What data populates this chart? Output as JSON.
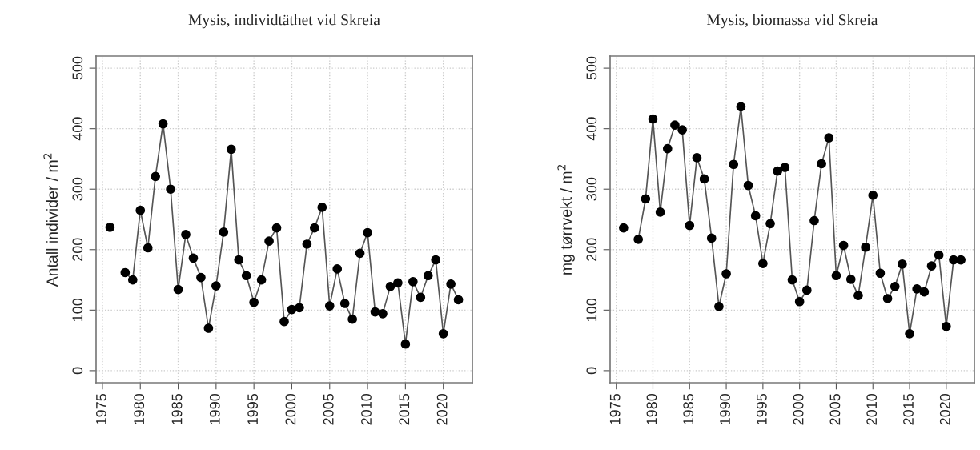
{
  "chart_data": [
    {
      "type": "line",
      "title": "Mysis, individtäthet vid Skreia",
      "ylabel": "Antall individer / m$^{2}$",
      "x": [
        1976,
        1977,
        1978,
        1979,
        1980,
        1981,
        1982,
        1983,
        1984,
        1985,
        1986,
        1987,
        1988,
        1989,
        1990,
        1991,
        1992,
        1993,
        1994,
        1995,
        1996,
        1997,
        1998,
        1999,
        2000,
        2001,
        2002,
        2003,
        2004,
        2005,
        2006,
        2007,
        2008,
        2009,
        2010,
        2011,
        2012,
        2013,
        2014,
        2015,
        2016,
        2017,
        2018,
        2019,
        2020,
        2021,
        2022
      ],
      "series": [
        {
          "color": "#000000",
          "values": [
            237,
            null,
            162,
            150,
            265,
            203,
            321,
            408,
            300,
            134,
            225,
            186,
            154,
            70,
            140,
            229,
            366,
            183,
            157,
            113,
            150,
            214,
            236,
            81,
            101,
            104,
            209,
            236,
            270,
            107,
            168,
            111,
            85,
            194,
            228,
            97,
            94,
            139,
            145,
            44,
            147,
            121,
            157,
            183,
            61,
            143,
            117
          ]
        }
      ],
      "xlim": [
        1974.16,
        2023.84
      ],
      "xticks": [
        1975,
        1980,
        1985,
        1990,
        1995,
        2000,
        2005,
        2010,
        2015,
        2020
      ],
      "ylim": [
        -20,
        520
      ],
      "yticks": [
        0,
        100,
        200,
        300,
        400,
        500
      ],
      "grid": true,
      "marker": "circle",
      "line_style": "solid"
    },
    {
      "type": "line",
      "title": "Mysis, biomassa vid Skreia",
      "ylabel": "mg tørrvekt / m$^{2}$",
      "x": [
        1976,
        1977,
        1978,
        1979,
        1980,
        1981,
        1982,
        1983,
        1984,
        1985,
        1986,
        1987,
        1988,
        1989,
        1990,
        1991,
        1992,
        1993,
        1994,
        1995,
        1996,
        1997,
        1998,
        1999,
        2000,
        2001,
        2002,
        2003,
        2004,
        2005,
        2006,
        2007,
        2008,
        2009,
        2010,
        2011,
        2012,
        2013,
        2014,
        2015,
        2016,
        2017,
        2018,
        2019,
        2020,
        2021,
        2022
      ],
      "series": [
        {
          "color": "#000000",
          "values": [
            236,
            null,
            217,
            284,
            416,
            262,
            367,
            406,
            398,
            240,
            352,
            317,
            219,
            106,
            160,
            341,
            436,
            306,
            256,
            177,
            243,
            330,
            336,
            150,
            114,
            133,
            248,
            342,
            385,
            157,
            207,
            151,
            124,
            204,
            290,
            161,
            119,
            139,
            176,
            61,
            135,
            130,
            173,
            191,
            73,
            183,
            183
          ]
        }
      ],
      "xlim": [
        1974.16,
        2023.84
      ],
      "xticks": [
        1975,
        1980,
        1985,
        1990,
        1995,
        2000,
        2005,
        2010,
        2015,
        2020
      ],
      "ylim": [
        -20,
        520
      ],
      "yticks": [
        0,
        100,
        200,
        300,
        400,
        500
      ],
      "grid": true,
      "marker": "circle",
      "line_style": "solid"
    }
  ]
}
